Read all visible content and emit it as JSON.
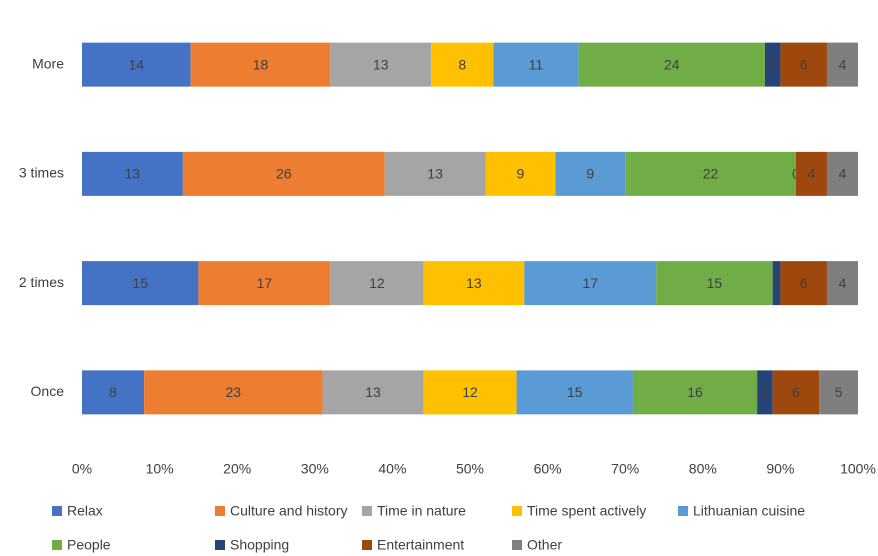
{
  "chart_data": {
    "type": "bar",
    "orientation": "horizontal",
    "stacked": true,
    "categories": [
      "More",
      "3 times",
      "2 times",
      "Once"
    ],
    "series": [
      {
        "name": "Relax",
        "color": "#4472c4",
        "values": [
          14,
          13,
          15,
          8
        ]
      },
      {
        "name": "Culture and history",
        "color": "#ed7d31",
        "values": [
          18,
          26,
          17,
          23
        ]
      },
      {
        "name": "Time in nature",
        "color": "#a5a5a5",
        "values": [
          13,
          13,
          12,
          13
        ]
      },
      {
        "name": "Time spent actively",
        "color": "#ffc000",
        "values": [
          8,
          9,
          13,
          12
        ]
      },
      {
        "name": "Lithuanian cuisine",
        "color": "#5b9bd5",
        "values": [
          11,
          9,
          17,
          15
        ]
      },
      {
        "name": "People",
        "color": "#70ad47",
        "values": [
          24,
          22,
          15,
          16
        ]
      },
      {
        "name": "Shopping",
        "color": "#264478",
        "values": [
          2,
          0,
          1,
          2
        ]
      },
      {
        "name": "Entertainment",
        "color": "#9e480e",
        "values": [
          6,
          4,
          6,
          6
        ]
      },
      {
        "name": "Other",
        "color": "#7f7f7f",
        "values": [
          4,
          4,
          4,
          5
        ]
      }
    ],
    "xlim": [
      0,
      100
    ],
    "xticks": [
      {
        "value": 0,
        "label": "0%"
      },
      {
        "value": 10,
        "label": "10%"
      },
      {
        "value": 20,
        "label": "20%"
      },
      {
        "value": 30,
        "label": "30%"
      },
      {
        "value": 40,
        "label": "40%"
      },
      {
        "value": 50,
        "label": "50%"
      },
      {
        "value": 60,
        "label": "60%"
      },
      {
        "value": 70,
        "label": "70%"
      },
      {
        "value": 80,
        "label": "80%"
      },
      {
        "value": 90,
        "label": "90%"
      },
      {
        "value": 100,
        "label": "100%"
      }
    ],
    "grid": false,
    "legend": "bottom"
  }
}
